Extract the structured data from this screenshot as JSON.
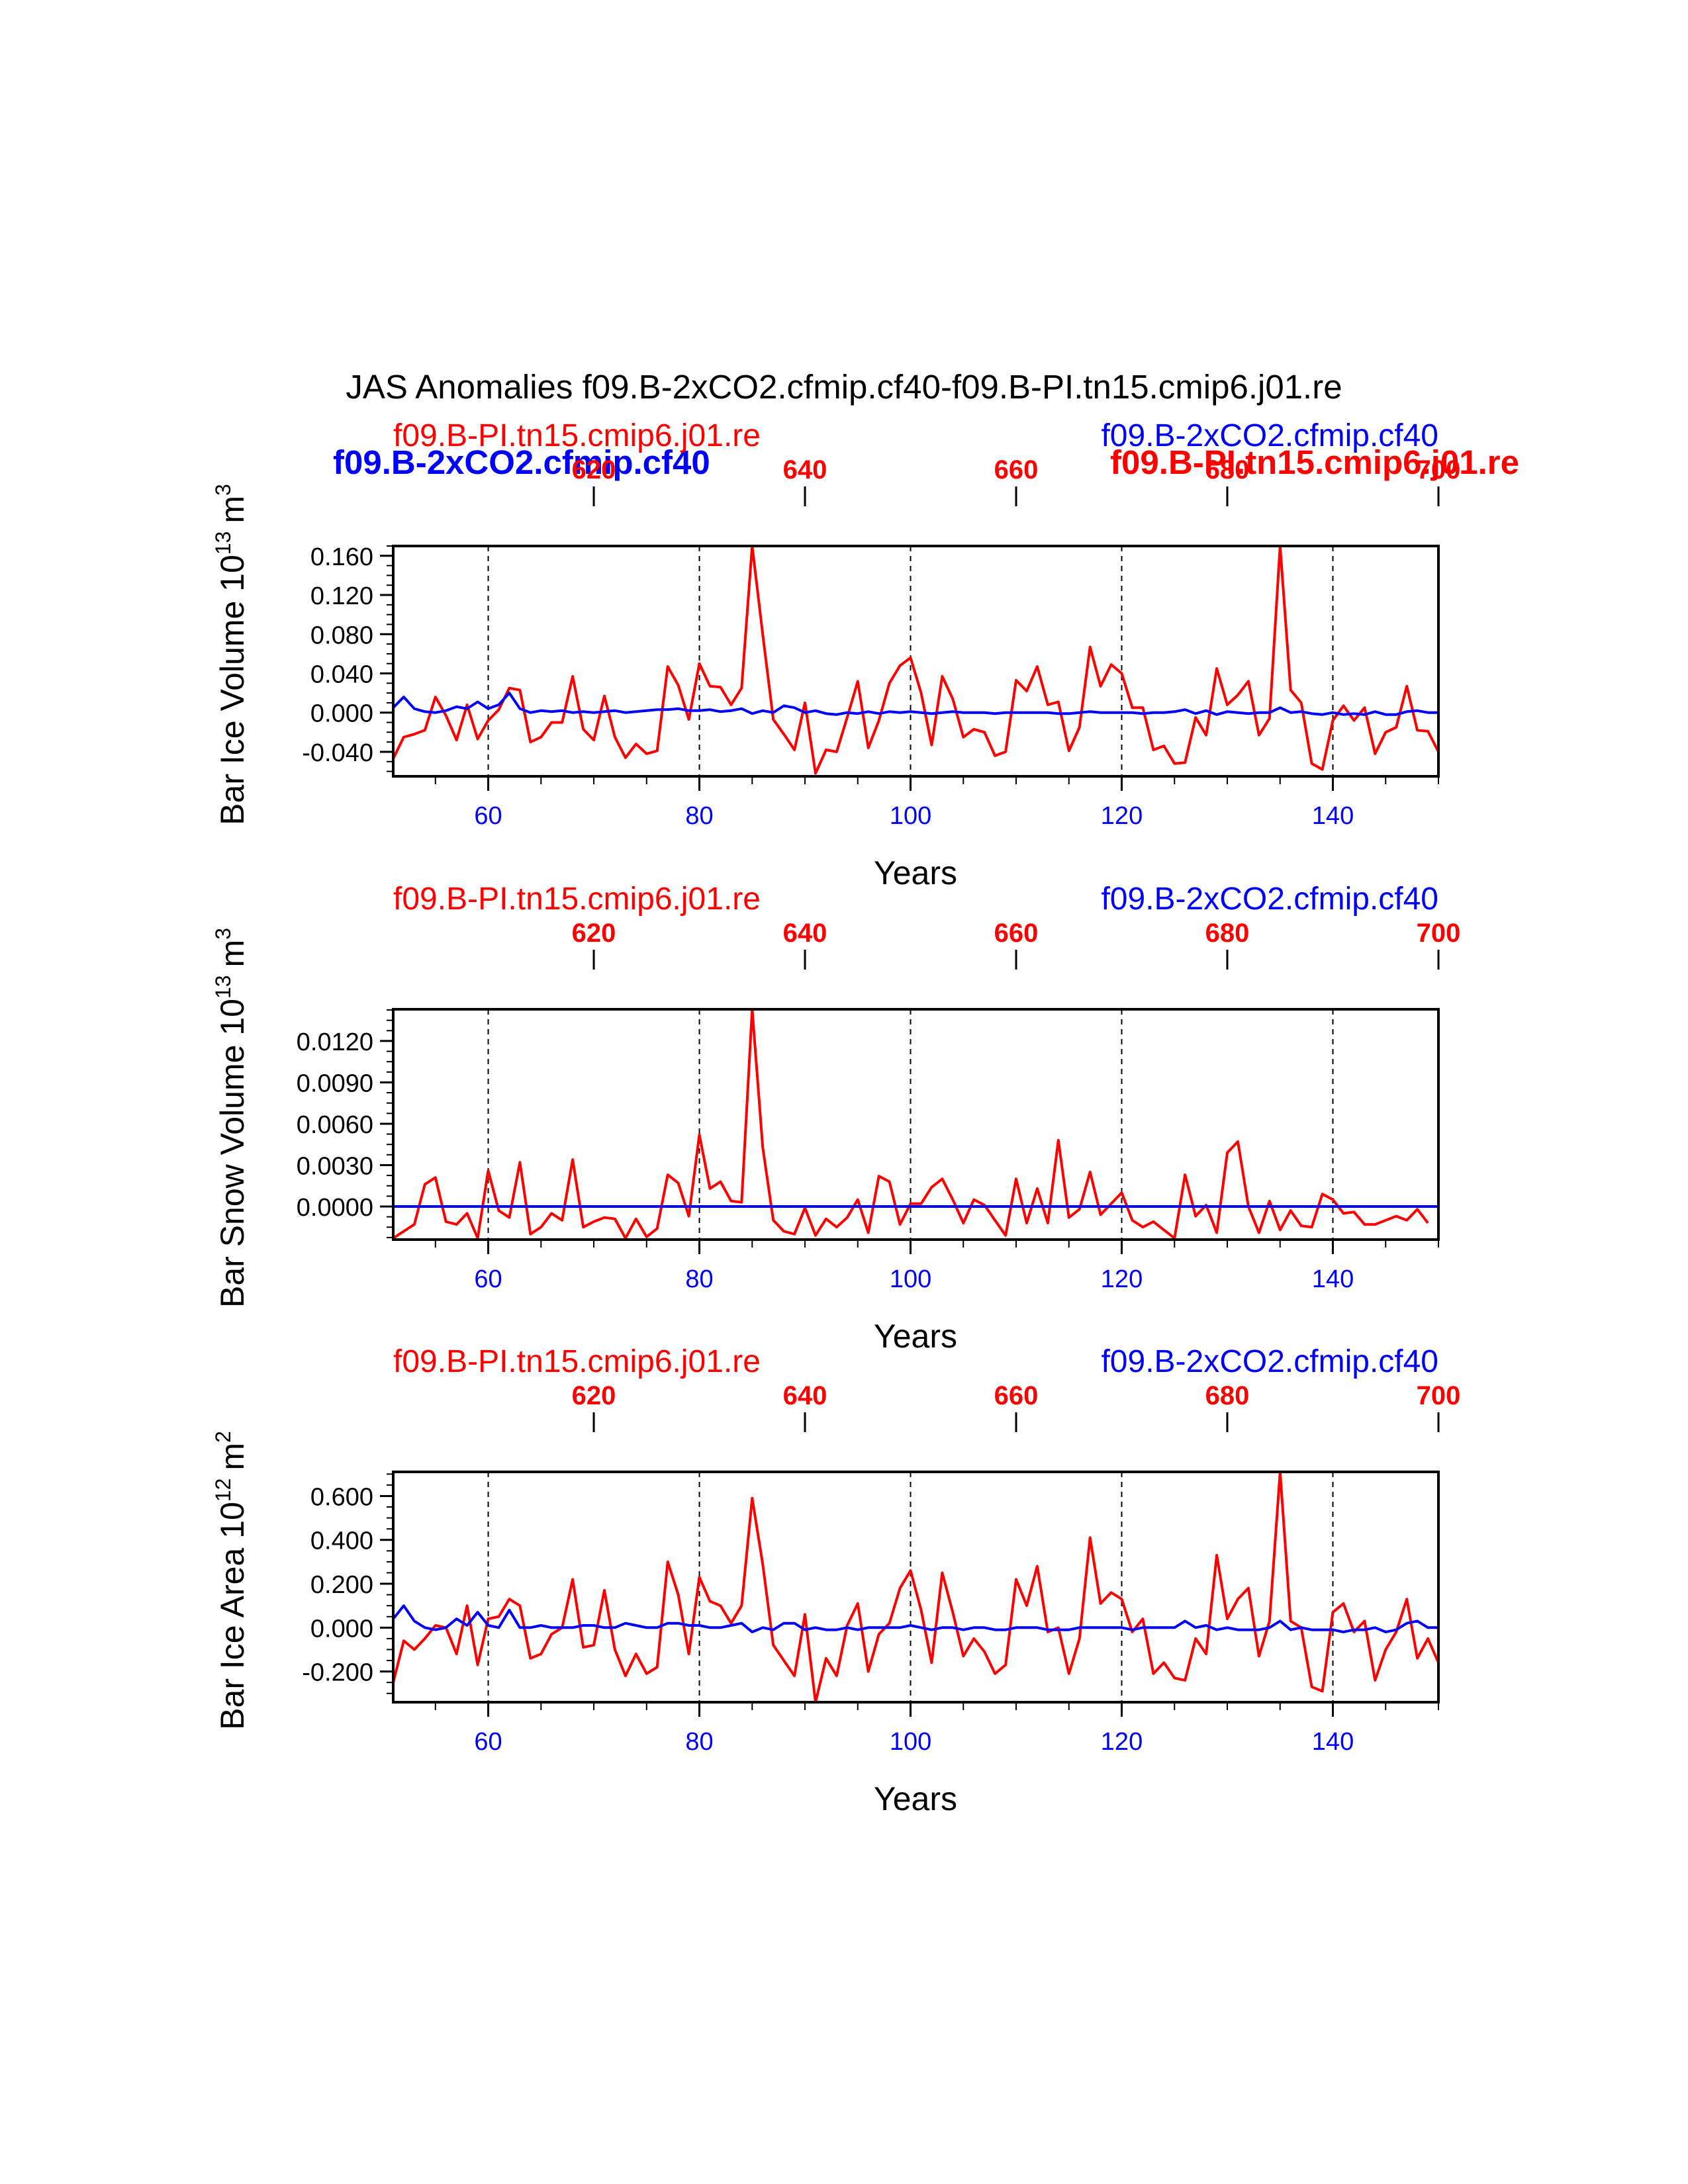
{
  "title": "JAS Anomalies f09.B-2xCO2.cfmip.cf40-f09.B-PI.tn15.cmip6.j01.re",
  "colors": {
    "pi": "#ff0000",
    "co2": "#0000ff",
    "axis": "#000000"
  },
  "overlay_labels": {
    "co2": "f09.B-2xCO2.cfmip.cf40",
    "pi": "f09.B-PI.tn15.cmip6.j01.re"
  },
  "chart_data": [
    {
      "type": "line",
      "title": "",
      "ylabel": "Bar Ice Volume 10",
      "ylabel_exp": "13",
      "ylabel_unit": "m",
      "ylabel_unit_exp": "3",
      "xlabel": "Years",
      "left_label": "f09.B-PI.tn15.cmip6.j01.re",
      "right_label": "f09.B-2xCO2.cfmip.cf40",
      "xlim": [
        51,
        150
      ],
      "top_xlim": [
        601,
        700
      ],
      "ylim": [
        -0.065,
        0.17
      ],
      "y_ticks": [
        -0.04,
        0.0,
        0.04,
        0.08,
        0.12,
        0.16
      ],
      "y_tick_labels": [
        "-0.040",
        "0.000",
        "0.040",
        "0.080",
        "0.120",
        "0.160"
      ],
      "x_ticks": [
        60,
        80,
        100,
        120,
        140
      ],
      "x_tick_labels": [
        "60",
        "80",
        "100",
        "120",
        "140"
      ],
      "top_ticks": [
        620,
        640,
        660,
        680,
        700
      ],
      "top_tick_labels": [
        "620",
        "640",
        "660",
        "680",
        "700"
      ],
      "series": [
        {
          "name": "f09.B-PI.tn15.cmip6.j01.re",
          "color": "#ff0000",
          "x_start": 51,
          "values": [
            -0.047,
            -0.025,
            -0.022,
            -0.018,
            0.016,
            -0.003,
            -0.028,
            0.008,
            -0.027,
            -0.008,
            0.003,
            0.025,
            0.023,
            -0.03,
            -0.025,
            -0.01,
            -0.01,
            0.037,
            -0.017,
            -0.028,
            0.017,
            -0.025,
            -0.046,
            -0.032,
            -0.042,
            -0.039,
            0.047,
            0.028,
            -0.007,
            0.05,
            0.027,
            0.026,
            0.008,
            0.025,
            0.17,
            0.08,
            -0.007,
            -0.022,
            -0.038,
            0.01,
            -0.062,
            -0.038,
            -0.04,
            -0.005,
            0.032,
            -0.036,
            -0.008,
            0.03,
            0.048,
            0.056,
            0.02,
            -0.033,
            0.037,
            0.014,
            -0.025,
            -0.017,
            -0.02,
            -0.044,
            -0.04,
            0.033,
            0.022,
            0.047,
            0.008,
            0.011,
            -0.039,
            -0.015,
            0.067,
            0.027,
            0.049,
            0.04,
            0.005,
            0.005,
            -0.038,
            -0.034,
            -0.052,
            -0.051,
            -0.005,
            -0.023,
            0.045,
            0.008,
            0.018,
            0.032,
            -0.023,
            -0.006,
            0.17,
            0.023,
            0.01,
            -0.052,
            -0.058,
            -0.008,
            0.007,
            -0.008,
            0.005,
            -0.042,
            -0.02,
            -0.015,
            0.027,
            -0.018,
            -0.019,
            -0.04
          ]
        },
        {
          "name": "f09.B-2xCO2.cfmip.cf40",
          "color": "#0000ff",
          "x_start": 51,
          "values": [
            0.005,
            0.016,
            0.004,
            0.001,
            0.0,
            0.002,
            0.006,
            0.004,
            0.011,
            0.004,
            0.008,
            0.02,
            0.004,
            0.0,
            0.002,
            0.001,
            0.002,
            0.0,
            0.001,
            0.0,
            0.001,
            0.002,
            0.0,
            0.001,
            0.002,
            0.003,
            0.003,
            0.004,
            0.002,
            0.002,
            0.003,
            0.001,
            0.002,
            0.004,
            -0.001,
            0.002,
            0.0,
            0.007,
            0.005,
            0.0,
            0.002,
            -0.001,
            -0.002,
            0.0,
            -0.001,
            0.001,
            -0.001,
            0.001,
            0.0,
            0.001,
            0.0,
            -0.001,
            0.0,
            0.001,
            0.0,
            0.0,
            0.0,
            -0.001,
            0.0,
            0.0,
            0.0,
            0.0,
            0.0,
            -0.001,
            -0.001,
            0.0,
            0.001,
            0.0,
            0.0,
            0.0,
            0.0,
            -0.001,
            0.0,
            0.0,
            0.001,
            0.003,
            -0.001,
            0.002,
            -0.002,
            0.001,
            0.0,
            -0.001,
            0.0,
            0.0,
            0.005,
            0.0,
            0.001,
            -0.001,
            -0.002,
            0.0,
            -0.002,
            -0.001,
            -0.002,
            0.001,
            -0.002,
            -0.002,
            0.001,
            0.002,
            0.0,
            0.0
          ]
        }
      ]
    },
    {
      "type": "line",
      "title": "",
      "ylabel": "Bar Snow Volume 10",
      "ylabel_exp": "13",
      "ylabel_unit": "m",
      "ylabel_unit_exp": "3",
      "xlabel": "Years",
      "left_label": "f09.B-PI.tn15.cmip6.j01.re",
      "right_label": "f09.B-2xCO2.cfmip.cf40",
      "xlim": [
        51,
        150
      ],
      "top_xlim": [
        601,
        700
      ],
      "ylim": [
        -0.0024,
        0.0143
      ],
      "y_ticks": [
        0.0,
        0.003,
        0.006,
        0.009,
        0.012
      ],
      "y_tick_labels": [
        "0.0000",
        "0.0030",
        "0.0060",
        "0.0090",
        "0.0120"
      ],
      "x_ticks": [
        60,
        80,
        100,
        120,
        140
      ],
      "x_tick_labels": [
        "60",
        "80",
        "100",
        "120",
        "140"
      ],
      "top_ticks": [
        620,
        640,
        660,
        680,
        700
      ],
      "top_tick_labels": [
        "620",
        "640",
        "660",
        "680",
        "700"
      ],
      "series": [
        {
          "name": "f09.B-PI.tn15.cmip6.j01.re",
          "color": "#ff0000",
          "x_start": 51,
          "values": [
            -0.0023,
            -0.0018,
            -0.0013,
            0.0016,
            0.0021,
            -0.0011,
            -0.0013,
            -0.0005,
            -0.0023,
            0.0026,
            -0.0003,
            -0.0008,
            0.0032,
            -0.002,
            -0.0015,
            -0.0005,
            -0.001,
            0.0034,
            -0.0015,
            -0.0011,
            -0.0008,
            -0.0009,
            -0.0023,
            -0.0009,
            -0.0022,
            -0.0016,
            0.0023,
            0.0017,
            -0.0007,
            0.0052,
            0.0013,
            0.0018,
            0.0004,
            0.0003,
            0.0143,
            0.0043,
            -0.001,
            -0.0018,
            -0.002,
            -0.0001,
            -0.0021,
            -0.0009,
            -0.0015,
            -0.0008,
            0.0005,
            -0.0019,
            0.0022,
            0.0018,
            -0.0013,
            0.0002,
            0.0002,
            0.0014,
            0.002,
            0.0005,
            -0.0012,
            0.0005,
            0.0001,
            -0.001,
            -0.0021,
            0.002,
            -0.0012,
            0.0013,
            -0.0012,
            0.0048,
            -0.0008,
            -0.0002,
            0.0025,
            -0.0006,
            0.0002,
            0.001,
            -0.001,
            -0.0015,
            -0.0011,
            -0.0017,
            -0.0023,
            0.0023,
            -0.0007,
            0.0001,
            -0.0019,
            0.0039,
            0.0047,
            0.0,
            -0.0019,
            0.0004,
            -0.0017,
            -0.0003,
            -0.0014,
            -0.0015,
            0.0009,
            0.0005,
            -0.0005,
            -0.0004,
            -0.0013,
            -0.0013,
            -0.001,
            -0.0007,
            -0.001,
            -0.0002,
            -0.0012
          ]
        },
        {
          "name": "f09.B-2xCO2.cfmip.cf40",
          "color": "#0000ff",
          "x_start": 51,
          "values": [
            0.0,
            0.0,
            0.0,
            0.0,
            0.0,
            0.0,
            0.0,
            0.0,
            0.0,
            0.0,
            0.0,
            0.0,
            0.0,
            0.0,
            0.0,
            0.0,
            0.0,
            0.0,
            0.0,
            0.0,
            0.0,
            0.0,
            0.0,
            0.0,
            0.0,
            0.0,
            0.0,
            0.0,
            0.0,
            0.0,
            0.0,
            0.0,
            0.0,
            0.0,
            0.0,
            0.0,
            0.0,
            0.0,
            0.0,
            0.0,
            0.0,
            0.0,
            0.0,
            0.0,
            0.0,
            0.0,
            0.0,
            0.0,
            0.0,
            0.0,
            0.0,
            0.0,
            0.0,
            0.0,
            0.0,
            0.0,
            0.0,
            0.0,
            0.0,
            0.0,
            0.0,
            0.0,
            0.0,
            0.0,
            0.0,
            0.0,
            0.0,
            0.0,
            0.0,
            0.0,
            0.0,
            0.0,
            0.0,
            0.0,
            0.0,
            0.0,
            0.0,
            0.0,
            0.0,
            0.0,
            0.0,
            0.0,
            0.0,
            0.0,
            0.0,
            0.0,
            0.0,
            0.0,
            0.0,
            0.0,
            0.0,
            0.0,
            0.0,
            0.0,
            0.0,
            0.0,
            0.0,
            0.0,
            0.0,
            0.0
          ]
        }
      ]
    },
    {
      "type": "line",
      "title": "",
      "ylabel": "Bar Ice Area 10",
      "ylabel_exp": "12",
      "ylabel_unit": "m",
      "ylabel_unit_exp": "2",
      "xlabel": "Years",
      "left_label": "f09.B-PI.tn15.cmip6.j01.re",
      "right_label": "f09.B-2xCO2.cfmip.cf40",
      "xlim": [
        51,
        150
      ],
      "top_xlim": [
        601,
        700
      ],
      "ylim": [
        -0.34,
        0.71
      ],
      "y_ticks": [
        -0.2,
        0.0,
        0.2,
        0.4,
        0.6
      ],
      "y_tick_labels": [
        "-0.200",
        "0.000",
        "0.200",
        "0.400",
        "0.600"
      ],
      "x_ticks": [
        60,
        80,
        100,
        120,
        140
      ],
      "x_tick_labels": [
        "60",
        "80",
        "100",
        "120",
        "140"
      ],
      "top_ticks": [
        620,
        640,
        660,
        680,
        700
      ],
      "top_tick_labels": [
        "620",
        "640",
        "660",
        "680",
        "700"
      ],
      "series": [
        {
          "name": "f09.B-PI.tn15.cmip6.j01.re",
          "color": "#ff0000",
          "x_start": 51,
          "values": [
            -0.25,
            -0.06,
            -0.1,
            -0.05,
            0.01,
            0.0,
            -0.12,
            0.1,
            -0.17,
            0.04,
            0.05,
            0.13,
            0.1,
            -0.14,
            -0.12,
            -0.03,
            0.0,
            0.22,
            -0.09,
            -0.08,
            0.17,
            -0.1,
            -0.22,
            -0.12,
            -0.21,
            -0.18,
            0.3,
            0.15,
            -0.12,
            0.23,
            0.12,
            0.1,
            0.02,
            0.1,
            0.59,
            0.29,
            -0.08,
            -0.15,
            -0.22,
            0.06,
            -0.34,
            -0.14,
            -0.22,
            0.01,
            0.11,
            -0.2,
            -0.03,
            0.02,
            0.18,
            0.26,
            0.08,
            -0.16,
            0.25,
            0.07,
            -0.13,
            -0.05,
            -0.11,
            -0.21,
            -0.17,
            0.22,
            0.1,
            0.28,
            -0.02,
            0.0,
            -0.21,
            -0.05,
            0.41,
            0.11,
            0.16,
            0.13,
            -0.02,
            0.04,
            -0.21,
            -0.16,
            -0.23,
            -0.24,
            -0.05,
            -0.12,
            0.33,
            0.04,
            0.13,
            0.18,
            -0.13,
            0.03,
            0.71,
            0.03,
            0.0,
            -0.27,
            -0.29,
            0.07,
            0.11,
            -0.02,
            0.03,
            -0.24,
            -0.1,
            -0.02,
            0.13,
            -0.14,
            -0.05,
            -0.16
          ]
        },
        {
          "name": "f09.B-2xCO2.cfmip.cf40",
          "color": "#0000ff",
          "x_start": 51,
          "values": [
            0.04,
            0.1,
            0.03,
            0.0,
            -0.01,
            0.0,
            0.04,
            0.01,
            0.07,
            0.01,
            0.0,
            0.08,
            0.0,
            0.0,
            0.01,
            0.0,
            0.0,
            0.0,
            0.01,
            0.01,
            0.0,
            0.0,
            0.02,
            0.01,
            0.0,
            0.0,
            0.02,
            0.02,
            0.01,
            0.01,
            0.0,
            0.0,
            0.01,
            0.02,
            -0.02,
            0.0,
            -0.01,
            0.02,
            0.02,
            -0.01,
            0.0,
            -0.01,
            -0.01,
            0.0,
            -0.01,
            0.0,
            0.0,
            0.0,
            0.0,
            0.01,
            0.0,
            -0.01,
            0.0,
            0.0,
            -0.01,
            0.0,
            0.0,
            -0.01,
            -0.01,
            0.0,
            0.0,
            0.0,
            -0.01,
            -0.01,
            -0.01,
            0.0,
            0.0,
            0.0,
            0.0,
            0.0,
            -0.01,
            0.0,
            0.0,
            0.0,
            0.0,
            0.03,
            0.0,
            0.01,
            -0.01,
            0.0,
            -0.01,
            -0.01,
            -0.01,
            0.0,
            0.03,
            -0.01,
            0.0,
            -0.01,
            -0.01,
            -0.01,
            -0.02,
            -0.01,
            -0.01,
            0.0,
            -0.02,
            -0.01,
            0.02,
            0.03,
            0.0,
            0.0
          ]
        }
      ]
    }
  ]
}
